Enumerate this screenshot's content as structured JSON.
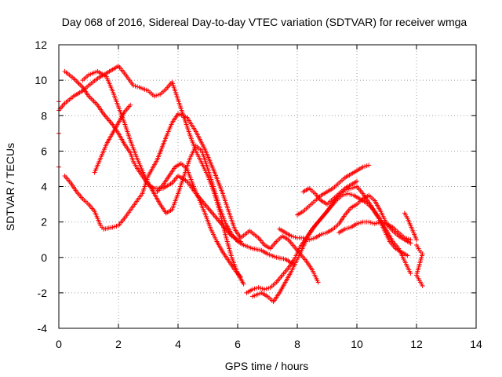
{
  "chart_data": {
    "type": "scatter",
    "title": "Day 068 of 2016, Sidereal Day-to-day VTEC variation (SDTVAR) for receiver wmga",
    "xlabel": "GPS time / hours",
    "ylabel": "SDTVAR / TECUs",
    "xlim": [
      0,
      14
    ],
    "ylim": [
      -4,
      12
    ],
    "x_ticks": [
      "0",
      "2",
      "4",
      "6",
      "8",
      "10",
      "12",
      "14"
    ],
    "y_ticks": [
      "-4",
      "-2",
      "0",
      "2",
      "4",
      "6",
      "8",
      "10",
      "12"
    ],
    "grid": true,
    "legend": "none",
    "marker": "plus",
    "color": "#ff0000",
    "series": [
      {
        "points": [
          [
            0.2,
            10.5
          ],
          [
            0.5,
            10.1
          ],
          [
            0.8,
            9.6
          ],
          [
            1.0,
            9.1
          ],
          [
            1.3,
            8.6
          ],
          [
            1.5,
            8.1
          ],
          [
            1.8,
            7.5
          ],
          [
            2.0,
            7.0
          ],
          [
            2.2,
            6.4
          ],
          [
            2.4,
            5.9
          ],
          [
            2.5,
            5.4
          ],
          [
            2.6,
            5.1
          ],
          [
            2.8,
            4.6
          ],
          [
            3.0,
            4.1
          ],
          [
            3.2,
            3.9
          ],
          [
            3.5,
            3.9
          ],
          [
            3.8,
            4.2
          ],
          [
            4.0,
            4.6
          ],
          [
            4.3,
            4.3
          ],
          [
            4.6,
            3.6
          ],
          [
            4.9,
            3.0
          ],
          [
            5.2,
            2.4
          ],
          [
            5.5,
            1.8
          ],
          [
            5.8,
            1.2
          ],
          [
            6.1,
            0.9
          ]
        ]
      },
      {
        "points": [
          [
            0.2,
            4.6
          ],
          [
            0.4,
            4.2
          ],
          [
            0.6,
            3.7
          ],
          [
            0.8,
            3.3
          ],
          [
            1.0,
            3.0
          ],
          [
            1.2,
            2.6
          ],
          [
            1.3,
            2.2
          ],
          [
            1.4,
            1.8
          ],
          [
            1.5,
            1.6
          ],
          [
            1.8,
            1.7
          ],
          [
            2.0,
            1.8
          ],
          [
            2.2,
            2.2
          ],
          [
            2.5,
            2.9
          ],
          [
            2.8,
            3.6
          ],
          [
            3.0,
            4.6
          ],
          [
            3.3,
            5.5
          ],
          [
            3.6,
            6.8
          ],
          [
            3.8,
            7.6
          ],
          [
            4.0,
            8.1
          ],
          [
            4.3,
            7.9
          ],
          [
            4.6,
            7.1
          ],
          [
            4.9,
            6.1
          ],
          [
            5.2,
            4.9
          ],
          [
            5.5,
            3.6
          ],
          [
            5.7,
            2.6
          ],
          [
            5.9,
            1.6
          ],
          [
            6.1,
            1.1
          ],
          [
            6.4,
            1.5
          ],
          [
            6.7,
            1.1
          ],
          [
            6.9,
            0.7
          ],
          [
            7.1,
            0.5
          ],
          [
            7.3,
            0.9
          ],
          [
            7.5,
            1.2
          ],
          [
            7.7,
            1.0
          ],
          [
            7.9,
            0.6
          ],
          [
            8.1,
            0.2
          ],
          [
            8.3,
            -0.2
          ],
          [
            8.5,
            -0.7
          ],
          [
            8.7,
            -1.4
          ]
        ]
      },
      {
        "points": [
          [
            0.0,
            8.3
          ],
          [
            0.2,
            8.7
          ],
          [
            0.5,
            9.1
          ],
          [
            0.8,
            9.4
          ],
          [
            1.0,
            9.7
          ],
          [
            1.3,
            10.1
          ],
          [
            1.6,
            10.4
          ],
          [
            1.8,
            10.6
          ],
          [
            2.0,
            10.8
          ],
          [
            2.2,
            10.4
          ],
          [
            2.5,
            9.7
          ],
          [
            2.7,
            9.6
          ],
          [
            3.0,
            9.4
          ],
          [
            3.2,
            9.1
          ],
          [
            3.4,
            9.2
          ],
          [
            3.6,
            9.5
          ],
          [
            3.8,
            9.9
          ],
          [
            4.0,
            8.9
          ],
          [
            4.2,
            7.9
          ],
          [
            4.4,
            6.9
          ],
          [
            4.6,
            6.0
          ],
          [
            4.8,
            5.3
          ],
          [
            5.0,
            4.6
          ],
          [
            5.2,
            3.7
          ],
          [
            5.4,
            2.6
          ],
          [
            5.6,
            1.2
          ],
          [
            5.8,
            0.0
          ],
          [
            6.0,
            -0.9
          ],
          [
            6.2,
            -1.5
          ]
        ]
      },
      {
        "points": [
          [
            0.8,
            10.0
          ],
          [
            1.0,
            10.3
          ],
          [
            1.3,
            10.5
          ],
          [
            1.6,
            10.2
          ],
          [
            1.8,
            9.4
          ],
          [
            2.0,
            8.5
          ],
          [
            2.2,
            7.6
          ],
          [
            2.4,
            6.6
          ],
          [
            2.6,
            5.7
          ],
          [
            2.8,
            4.9
          ],
          [
            3.0,
            4.2
          ],
          [
            3.2,
            3.6
          ],
          [
            3.4,
            3.0
          ],
          [
            3.6,
            2.5
          ],
          [
            3.8,
            2.7
          ],
          [
            4.0,
            3.6
          ],
          [
            4.2,
            4.6
          ],
          [
            4.4,
            5.6
          ],
          [
            4.6,
            6.3
          ],
          [
            4.8,
            6.0
          ],
          [
            5.0,
            5.0
          ],
          [
            5.2,
            3.9
          ],
          [
            5.4,
            2.8
          ],
          [
            5.6,
            1.9
          ],
          [
            5.8,
            1.3
          ],
          [
            6.0,
            0.9
          ],
          [
            6.2,
            0.7
          ],
          [
            6.5,
            0.5
          ],
          [
            6.8,
            0.4
          ],
          [
            7.0,
            0.2
          ],
          [
            7.3,
            0.0
          ],
          [
            7.6,
            -0.1
          ],
          [
            7.9,
            -0.4
          ]
        ]
      },
      {
        "points": [
          [
            1.2,
            4.8
          ],
          [
            1.4,
            5.6
          ],
          [
            1.6,
            6.4
          ],
          [
            1.8,
            7.0
          ],
          [
            2.0,
            7.6
          ],
          [
            2.2,
            8.2
          ],
          [
            2.4,
            8.6
          ]
        ]
      },
      {
        "points": [
          [
            3.3,
            3.7
          ],
          [
            3.5,
            4.1
          ],
          [
            3.7,
            4.6
          ],
          [
            3.9,
            5.1
          ],
          [
            4.1,
            5.3
          ],
          [
            4.3,
            5.0
          ],
          [
            4.5,
            4.1
          ],
          [
            4.7,
            3.3
          ],
          [
            4.9,
            2.5
          ],
          [
            5.1,
            1.6
          ],
          [
            5.3,
            0.9
          ],
          [
            5.5,
            0.3
          ],
          [
            5.7,
            -0.2
          ],
          [
            5.9,
            -0.7
          ],
          [
            6.1,
            -1.1
          ]
        ]
      },
      {
        "points": [
          [
            6.3,
            -2.0
          ],
          [
            6.5,
            -1.8
          ],
          [
            6.7,
            -1.7
          ],
          [
            6.9,
            -1.8
          ],
          [
            7.1,
            -1.7
          ],
          [
            7.3,
            -1.4
          ],
          [
            7.5,
            -1.0
          ],
          [
            7.7,
            -0.6
          ],
          [
            7.9,
            -0.1
          ],
          [
            8.1,
            0.6
          ],
          [
            8.3,
            1.1
          ],
          [
            8.5,
            1.6
          ],
          [
            8.7,
            2.0
          ],
          [
            8.9,
            2.4
          ],
          [
            9.1,
            2.8
          ],
          [
            9.3,
            3.2
          ],
          [
            9.5,
            3.5
          ],
          [
            9.7,
            3.6
          ],
          [
            9.9,
            3.5
          ],
          [
            10.1,
            3.3
          ],
          [
            10.3,
            3.1
          ],
          [
            10.5,
            2.8
          ],
          [
            10.7,
            2.3
          ],
          [
            10.9,
            1.6
          ],
          [
            11.1,
            0.9
          ],
          [
            11.3,
            0.5
          ],
          [
            11.5,
            0.3
          ],
          [
            11.7,
            0.1
          ]
        ]
      },
      {
        "points": [
          [
            6.5,
            -2.2
          ],
          [
            6.8,
            -2.0
          ],
          [
            7.0,
            -2.2
          ],
          [
            7.2,
            -2.5
          ],
          [
            7.4,
            -2.0
          ],
          [
            7.6,
            -1.4
          ],
          [
            7.8,
            -0.8
          ],
          [
            8.0,
            -0.1
          ],
          [
            8.2,
            0.6
          ],
          [
            8.4,
            1.3
          ],
          [
            8.6,
            1.8
          ],
          [
            8.8,
            2.2
          ],
          [
            9.0,
            2.6
          ],
          [
            9.2,
            3.1
          ],
          [
            9.4,
            3.5
          ],
          [
            9.6,
            3.8
          ],
          [
            9.8,
            3.9
          ],
          [
            10.0,
            4.0
          ],
          [
            10.2,
            3.6
          ],
          [
            10.4,
            3.1
          ],
          [
            10.6,
            2.6
          ],
          [
            10.8,
            2.1
          ],
          [
            11.0,
            1.5
          ],
          [
            11.2,
            0.9
          ],
          [
            11.4,
            0.5
          ],
          [
            11.6,
            -0.2
          ],
          [
            11.8,
            -0.9
          ]
        ]
      },
      {
        "points": [
          [
            7.4,
            1.6
          ],
          [
            7.6,
            1.4
          ],
          [
            7.8,
            1.2
          ],
          [
            8.0,
            1.1
          ],
          [
            8.2,
            1.1
          ],
          [
            8.4,
            1.0
          ],
          [
            8.6,
            1.1
          ],
          [
            8.8,
            1.3
          ],
          [
            9.0,
            1.4
          ],
          [
            9.2,
            1.6
          ],
          [
            9.4,
            1.9
          ],
          [
            9.6,
            2.4
          ],
          [
            9.8,
            2.8
          ],
          [
            10.0,
            3.0
          ],
          [
            10.2,
            3.3
          ],
          [
            10.4,
            3.5
          ],
          [
            10.6,
            3.2
          ],
          [
            10.8,
            2.6
          ],
          [
            11.0,
            1.9
          ],
          [
            11.2,
            1.5
          ],
          [
            11.4,
            1.2
          ],
          [
            11.6,
            1.0
          ],
          [
            11.8,
            0.8
          ]
        ]
      },
      {
        "points": [
          [
            8.0,
            2.4
          ],
          [
            8.2,
            2.6
          ],
          [
            8.4,
            2.9
          ],
          [
            8.6,
            3.2
          ],
          [
            8.8,
            3.5
          ],
          [
            9.0,
            3.7
          ],
          [
            9.2,
            3.9
          ],
          [
            9.4,
            4.2
          ],
          [
            9.6,
            4.5
          ],
          [
            9.8,
            4.7
          ],
          [
            10.0,
            4.9
          ],
          [
            10.2,
            5.1
          ],
          [
            10.4,
            5.2
          ]
        ]
      },
      {
        "points": [
          [
            8.2,
            3.7
          ],
          [
            8.4,
            3.9
          ],
          [
            8.6,
            3.6
          ],
          [
            8.8,
            3.2
          ],
          [
            9.0,
            3.0
          ],
          [
            9.2,
            3.3
          ],
          [
            9.4,
            3.6
          ],
          [
            9.6,
            3.9
          ],
          [
            9.8,
            4.1
          ],
          [
            10.0,
            4.3
          ]
        ]
      },
      {
        "points": [
          [
            9.4,
            1.4
          ],
          [
            9.6,
            1.6
          ],
          [
            9.8,
            1.7
          ],
          [
            10.0,
            1.9
          ],
          [
            10.2,
            2.0
          ],
          [
            10.4,
            2.0
          ],
          [
            10.6,
            1.9
          ],
          [
            10.8,
            2.0
          ],
          [
            11.0,
            1.9
          ],
          [
            11.2,
            1.7
          ],
          [
            11.4,
            1.4
          ],
          [
            11.6,
            1.1
          ],
          [
            11.8,
            1.0
          ]
        ]
      },
      {
        "points": [
          [
            11.6,
            2.5
          ],
          [
            11.7,
            2.2
          ],
          [
            11.8,
            1.8
          ],
          [
            11.9,
            1.4
          ],
          [
            12.0,
            1.0
          ]
        ]
      },
      {
        "points": [
          [
            12.0,
            0.7
          ],
          [
            12.1,
            0.4
          ],
          [
            12.2,
            0.2
          ],
          [
            12.0,
            -1.0
          ],
          [
            12.1,
            -1.3
          ],
          [
            12.2,
            -1.6
          ]
        ]
      },
      {
        "points": [
          [
            0.0,
            7.0
          ],
          [
            0.0,
            5.1
          ],
          [
            0.0,
            8.8
          ]
        ]
      }
    ]
  }
}
